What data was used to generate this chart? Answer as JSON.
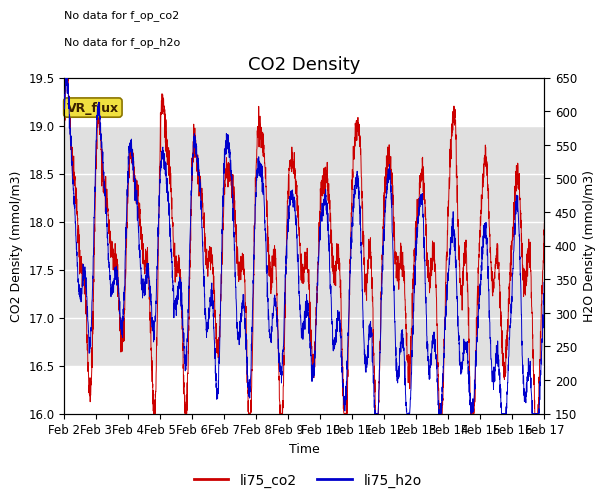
{
  "title": "CO2 Density",
  "xlabel": "Time",
  "ylabel_left": "CO2 Density (mmol/m3)",
  "ylabel_right": "H2O Density (mmol/m3)",
  "ylim_left": [
    16.0,
    19.5
  ],
  "ylim_right": [
    150,
    650
  ],
  "xlim": [
    0,
    15
  ],
  "xtick_labels": [
    "Feb 2",
    "Feb 3",
    "Feb 4",
    "Feb 5",
    "Feb 6",
    "Feb 7",
    "Feb 8",
    "Feb 9",
    "Feb 10",
    "Feb 11",
    "Feb 12",
    "Feb 13",
    "Feb 14",
    "Feb 15",
    "Feb 16",
    "Feb 17"
  ],
  "no_data_text1": "No data for f_op_co2",
  "no_data_text2": "No data for f_op_h2o",
  "vr_flux_label": "VR_flux",
  "legend_labels": [
    "li75_co2",
    "li75_h2o"
  ],
  "line_colors": [
    "#cc0000",
    "#0000cc"
  ],
  "background_color": "#ffffff",
  "shaded_region": [
    16.5,
    19.0
  ],
  "shaded_color": "#e0e0e0",
  "title_fontsize": 13,
  "label_fontsize": 9,
  "tick_fontsize": 8.5
}
